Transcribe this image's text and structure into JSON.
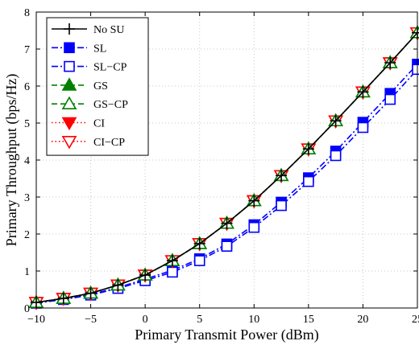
{
  "chart_data": {
    "type": "line",
    "xlabel": "Primary Transmit Power (dBm)",
    "ylabel": "Primary Throughput (bps/Hz)",
    "xlim": [
      -10,
      25
    ],
    "ylim": [
      0,
      8
    ],
    "x_ticks": [
      -10,
      -5,
      0,
      5,
      10,
      15,
      20,
      25
    ],
    "x_tick_labels": [
      "−10",
      "−5",
      "0",
      "5",
      "10",
      "15",
      "20",
      "25"
    ],
    "y_ticks": [
      0,
      1,
      2,
      3,
      4,
      5,
      6,
      7,
      8
    ],
    "y_tick_labels": [
      "0",
      "1",
      "2",
      "3",
      "4",
      "5",
      "6",
      "7",
      "8"
    ],
    "grid": true,
    "legend_position": "top-left",
    "x": [
      -10,
      -7.5,
      -5,
      -2.5,
      0,
      2.5,
      5,
      7.5,
      10,
      12.5,
      15,
      17.5,
      20,
      22.5,
      25
    ],
    "series": [
      {
        "name": "No SU",
        "color": "#000000",
        "line": "solid",
        "marker": "plus",
        "filled": false,
        "values": [
          0.15,
          0.26,
          0.4,
          0.62,
          0.89,
          1.28,
          1.74,
          2.29,
          2.9,
          3.58,
          4.3,
          5.06,
          5.84,
          6.63,
          7.44
        ]
      },
      {
        "name": "SL",
        "color": "#0000ff",
        "line": "dashdot",
        "marker": "square",
        "filled": true,
        "values": [
          0.14,
          0.24,
          0.37,
          0.55,
          0.78,
          1.02,
          1.33,
          1.73,
          2.25,
          2.86,
          3.52,
          4.24,
          5.02,
          5.8,
          6.59
        ]
      },
      {
        "name": "SL−CP",
        "color": "#0000ff",
        "line": "dashdot",
        "marker": "square",
        "filled": false,
        "values": [
          0.13,
          0.23,
          0.35,
          0.53,
          0.74,
          0.97,
          1.28,
          1.67,
          2.18,
          2.77,
          3.42,
          4.12,
          4.88,
          5.64,
          6.45
        ]
      },
      {
        "name": "GS",
        "color": "#008000",
        "line": "dashed",
        "marker": "triangle-up",
        "filled": true,
        "values": [
          0.15,
          0.26,
          0.4,
          0.62,
          0.89,
          1.28,
          1.74,
          2.29,
          2.9,
          3.58,
          4.3,
          5.06,
          5.84,
          6.63,
          7.44
        ]
      },
      {
        "name": "GS−CP",
        "color": "#008000",
        "line": "dashed",
        "marker": "triangle-up",
        "filled": false,
        "values": [
          0.15,
          0.26,
          0.4,
          0.62,
          0.89,
          1.28,
          1.74,
          2.29,
          2.9,
          3.58,
          4.3,
          5.06,
          5.84,
          6.63,
          7.44
        ]
      },
      {
        "name": "CI",
        "color": "#ff0000",
        "line": "dotted",
        "marker": "triangle-down",
        "filled": true,
        "values": [
          0.15,
          0.26,
          0.4,
          0.62,
          0.89,
          1.28,
          1.74,
          2.29,
          2.9,
          3.58,
          4.3,
          5.06,
          5.84,
          6.63,
          7.44
        ]
      },
      {
        "name": "CI−CP",
        "color": "#ff0000",
        "line": "dotted",
        "marker": "triangle-down",
        "filled": false,
        "values": [
          0.15,
          0.26,
          0.4,
          0.62,
          0.89,
          1.28,
          1.74,
          2.29,
          2.9,
          3.58,
          4.3,
          5.06,
          5.84,
          6.63,
          7.44
        ]
      }
    ]
  }
}
